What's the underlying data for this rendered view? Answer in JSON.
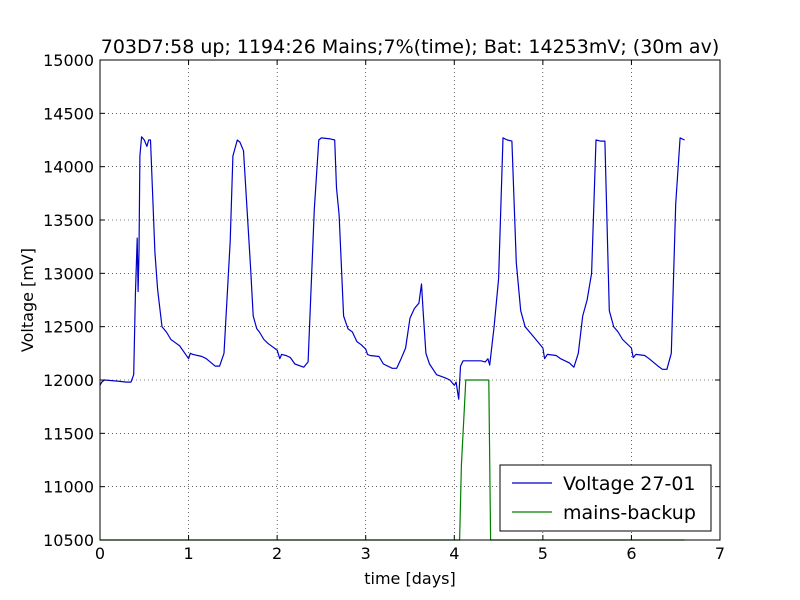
{
  "chart_data": {
    "type": "line",
    "title": "703D7:58 up; 1194:26 Mains;7%(time); Bat: 14253mV; (30m av)",
    "xlabel": "time [days]",
    "ylabel": "Voltage [mV]",
    "xlim": [
      0,
      7
    ],
    "ylim": [
      10500,
      15000
    ],
    "xticks": [
      0,
      1,
      2,
      3,
      4,
      5,
      6,
      7
    ],
    "yticks": [
      10500,
      11000,
      11500,
      12000,
      12500,
      13000,
      13500,
      14000,
      14500,
      15000
    ],
    "grid": true,
    "legend": "lower-right",
    "colors": {
      "voltage": "#0000cc",
      "mains": "#007f00"
    },
    "series": [
      {
        "name": "Voltage 27-01",
        "color": "#0000cc",
        "x": [
          0.0,
          0.02,
          0.05,
          0.2,
          0.3,
          0.35,
          0.38,
          0.4,
          0.42,
          0.43,
          0.44,
          0.45,
          0.47,
          0.5,
          0.53,
          0.55,
          0.57,
          0.62,
          0.65,
          0.7,
          0.75,
          0.8,
          0.85,
          0.9,
          1.0,
          1.02,
          1.05,
          1.15,
          1.2,
          1.3,
          1.35,
          1.4,
          1.47,
          1.5,
          1.55,
          1.58,
          1.62,
          1.7,
          1.73,
          1.77,
          1.8,
          1.85,
          1.9,
          2.0,
          2.03,
          2.05,
          2.1,
          2.15,
          2.2,
          2.3,
          2.35,
          2.42,
          2.47,
          2.5,
          2.6,
          2.65,
          2.67,
          2.7,
          2.75,
          2.8,
          2.85,
          2.9,
          2.95,
          3.0,
          3.02,
          3.05,
          3.15,
          3.2,
          3.3,
          3.35,
          3.4,
          3.45,
          3.5,
          3.55,
          3.6,
          3.63,
          3.65,
          3.68,
          3.72,
          3.8,
          3.9,
          3.95,
          4.0,
          4.02,
          4.05,
          4.07,
          4.1,
          4.15,
          4.2,
          4.3,
          4.35,
          4.38,
          4.4,
          4.45,
          4.5,
          4.55,
          4.6,
          4.65,
          4.7,
          4.75,
          4.8,
          4.85,
          4.9,
          5.0,
          5.02,
          5.05,
          5.15,
          5.2,
          5.3,
          5.35,
          5.4,
          5.45,
          5.5,
          5.55,
          5.6,
          5.65,
          5.7,
          5.75,
          5.8,
          5.85,
          5.9,
          6.0,
          6.02,
          6.05,
          6.15,
          6.2,
          6.3,
          6.35,
          6.4,
          6.45,
          6.5,
          6.55,
          6.6
        ],
        "y": [
          11950,
          11980,
          12000,
          11990,
          11980,
          11980,
          12050,
          12800,
          13330,
          12830,
          13200,
          14100,
          14280,
          14250,
          14190,
          14250,
          14250,
          13200,
          12850,
          12500,
          12450,
          12380,
          12350,
          12320,
          12200,
          12250,
          12240,
          12220,
          12200,
          12130,
          12130,
          12250,
          13300,
          14100,
          14250,
          14230,
          14150,
          13050,
          12600,
          12480,
          12450,
          12380,
          12340,
          12280,
          12200,
          12240,
          12230,
          12210,
          12150,
          12120,
          12170,
          13600,
          14250,
          14270,
          14260,
          14250,
          13800,
          13550,
          12600,
          12480,
          12450,
          12360,
          12330,
          12290,
          12240,
          12230,
          12220,
          12150,
          12110,
          12110,
          12200,
          12300,
          12580,
          12670,
          12720,
          12900,
          12620,
          12250,
          12150,
          12050,
          12020,
          12000,
          11950,
          11980,
          11820,
          12130,
          12180,
          12180,
          12180,
          12180,
          12170,
          12200,
          12140,
          12500,
          12950,
          14270,
          14250,
          14240,
          13100,
          12650,
          12500,
          12450,
          12400,
          12300,
          12200,
          12240,
          12230,
          12200,
          12160,
          12120,
          12250,
          12600,
          12750,
          13000,
          14250,
          14240,
          14240,
          12650,
          12500,
          12450,
          12380,
          12300,
          12210,
          12240,
          12230,
          12200,
          12130,
          12100,
          12100,
          12250,
          13650,
          14270,
          14250
        ]
      },
      {
        "name": "mains-backup",
        "color": "#007f00",
        "x": [
          0,
          4.06,
          4.08,
          4.13,
          4.35,
          4.39,
          4.41,
          6.6
        ],
        "y": [
          10500,
          10500,
          11200,
          12000,
          12000,
          12000,
          10500,
          10500
        ]
      }
    ]
  }
}
